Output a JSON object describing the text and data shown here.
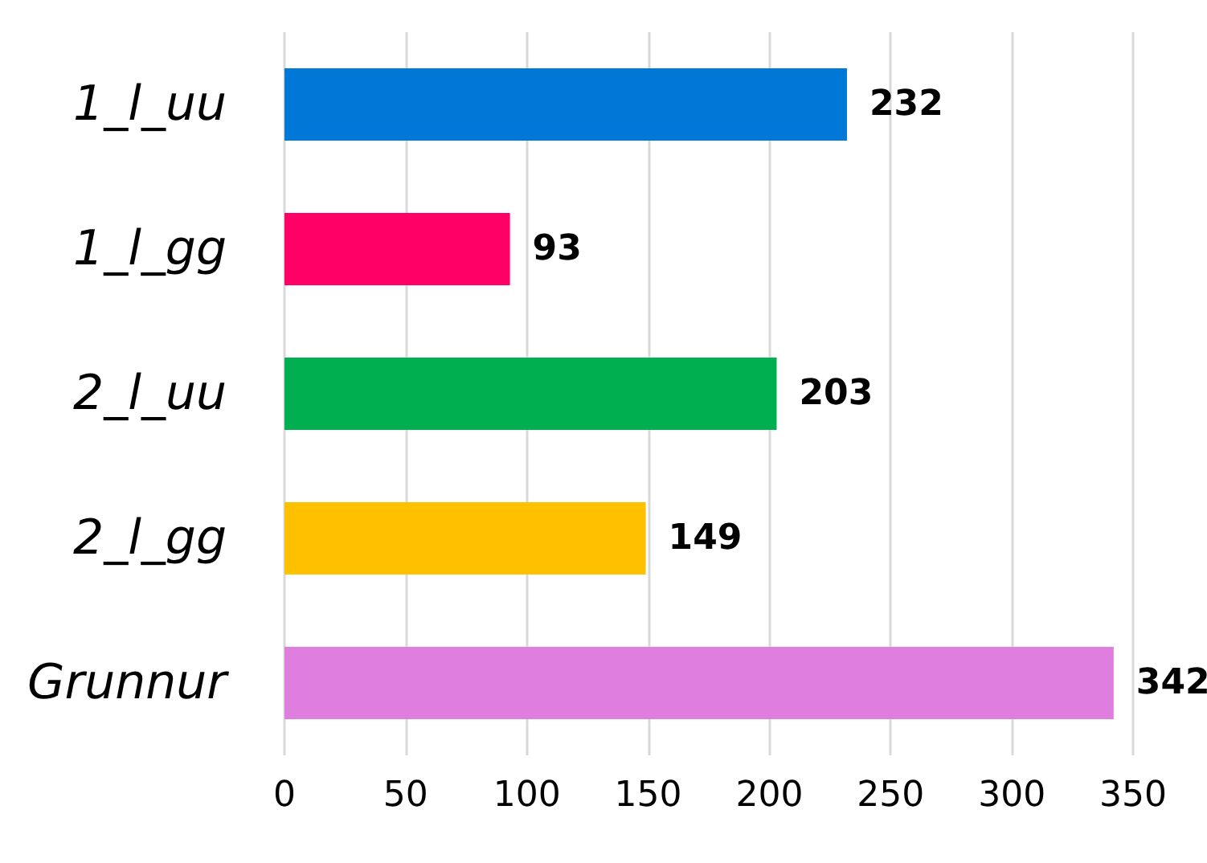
{
  "chart_data": {
    "type": "bar",
    "orientation": "horizontal",
    "categories": [
      "1_l_uu",
      "1_l_gg",
      "2_l_uu",
      "2_l_gg",
      "Grunnur"
    ],
    "values": [
      232,
      93,
      203,
      149,
      342
    ],
    "colors": [
      "#0078d7",
      "#ff0066",
      "#00b050",
      "#ffc000",
      "#e07ee0"
    ],
    "xlim": [
      0,
      350
    ],
    "xticks": [
      0,
      50,
      100,
      150,
      200,
      250,
      300,
      350
    ],
    "grid": "x",
    "data_labels": true
  }
}
